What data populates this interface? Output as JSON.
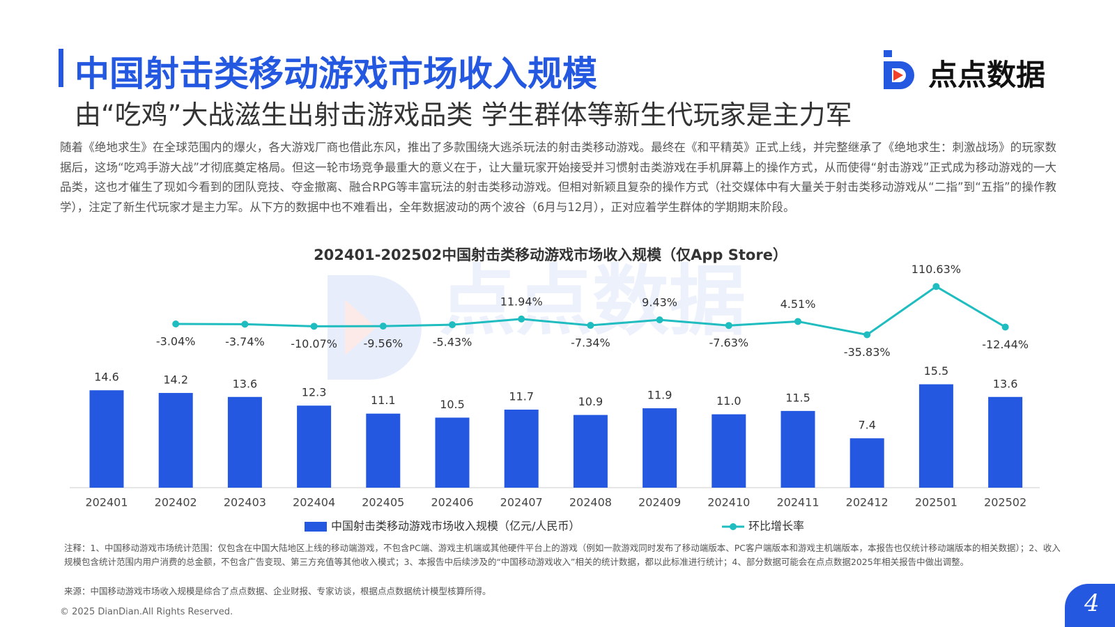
{
  "header": {
    "title": "中国射击类移动游戏市场收入规模",
    "subtitle": "由“吃鸡”大战滋生出射击游戏品类 学生群体等新生代玩家是主力军",
    "logo": "点点数据"
  },
  "body": {
    "paragraph": "随着《绝地求生》在全球范围内的爆火，各大游戏厂商也借此东风，推出了多款围绕大逃杀玩法的射击类移动游戏。最终在《和平精英》正式上线，并完整继承了《绝地求生：刺激战场》的玩家数据后，这场“吃鸡手游大战”才彻底奠定格局。但这一轮市场竞争最重大的意义在于，让大量玩家开始接受并习惯射击类游戏在手机屏幕上的操作方式，从而使得“射击游戏”正式成为移动游戏的一大品类，这也才催生了现如今看到的团队竞技、夺金撤离、融合RPG等丰富玩法的射击类移动游戏。但相对新颖且复杂的操作方式（社交媒体中有大量关于射击类移动游戏从“二指”到“五指”的操作教学），注定了新生代玩家才是主力军。从下方的数据中也不难看出，全年数据波动的两个波谷（6月与12月），正对应着学生群体的学期期末阶段。"
  },
  "chart_data": {
    "type": "bar",
    "title": "202401-202502中国射击类移动游戏市场收入规模（仅App Store）",
    "watermark": "点点数据",
    "categories": [
      "202401",
      "202402",
      "202403",
      "202404",
      "202405",
      "202406",
      "202407",
      "202408",
      "202409",
      "202410",
      "202411",
      "202412",
      "202501",
      "202502"
    ],
    "ylim": [
      0,
      40
    ],
    "y2lim": [
      -500,
      310
    ],
    "series": [
      {
        "name": "中国射击类移动游戏市场收入规模（亿元/人民币）",
        "type": "bar",
        "color": "#2458e0",
        "values": [
          14.6,
          14.2,
          13.6,
          12.3,
          11.1,
          10.5,
          11.7,
          10.9,
          11.9,
          11.0,
          11.5,
          7.4,
          15.5,
          13.6
        ],
        "value_labels": [
          "14.6",
          "14.2",
          "13.6",
          "12.3",
          "11.1",
          "10.5",
          "11.7",
          "10.9",
          "11.9",
          "11.0",
          "11.5",
          "7.4",
          "15.5",
          "13.6"
        ]
      },
      {
        "name": "环比增长率",
        "type": "line",
        "axis": "y2",
        "color": "#1fbcc0",
        "values": [
          null,
          -3.04,
          -3.74,
          -10.07,
          -9.56,
          -5.43,
          11.94,
          -7.34,
          9.43,
          -7.63,
          4.51,
          -35.83,
          110.63,
          -12.44
        ],
        "value_labels": [
          null,
          "-3.04%",
          "-3.74%",
          "-10.07%",
          "-9.56%",
          "-5.43%",
          "11.94%",
          "-7.34%",
          "9.43%",
          "-7.63%",
          "4.51%",
          "-35.83%",
          "110.63%",
          "-12.44%"
        ]
      }
    ]
  },
  "footer": {
    "notes": "注释：1、中国移动游戏市场统计范围：仅包含在中国大陆地区上线的移动端游戏，不包含PC端、游戏主机端或其他硬件平台上的游戏（例如一款游戏同时发布了移动端版本、PC客户端版本和游戏主机端版本，本报告也仅统计移动端版本的相关数据）；2、收入规模包含统计范围内用户消费的总金额，不包含广告变现、第三方充值等其他收入模式；3、本报告中后续涉及的“中国移动游戏收入”相关的统计数据，都以此标准进行统计；4、部分数据可能会在点点数据2025年相关报告中做出调整。",
    "source": "来源：中国移动游戏市场收入规模是综合了点点数据、企业财报、专家访谈，根据点点数据统计模型核算所得。",
    "copyright": "© 2025 DianDian.All Rights Reserved.",
    "page": 4
  }
}
